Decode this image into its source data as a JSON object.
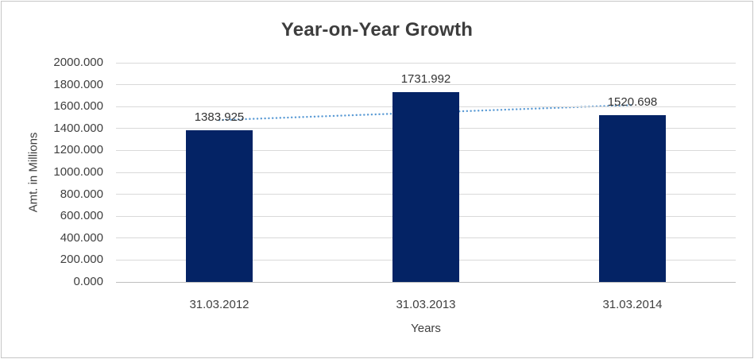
{
  "window": {
    "background": "#ffffff",
    "border_color": "#c6c6c6"
  },
  "chart_data": {
    "type": "bar",
    "title": "Year-on-Year Growth",
    "xlabel": "Years",
    "ylabel": "Amt. in Millions",
    "categories": [
      "31.03.2012",
      "31.03.2013",
      "31.03.2014"
    ],
    "values": [
      1383.925,
      1731.992,
      1520.698
    ],
    "data_labels": [
      "1383.925",
      "1731.992",
      "1520.698"
    ],
    "ylim": [
      0,
      2000
    ],
    "ytick_step": 200,
    "ytick_labels": [
      "0.000",
      "200.000",
      "400.000",
      "600.000",
      "800.000",
      "1000.000",
      "1200.000",
      "1400.000",
      "1600.000",
      "1800.000",
      "2000.000"
    ],
    "grid": true,
    "legend": "none",
    "bar_color": "#042365",
    "gridline_color": "#d9d9d9",
    "axis_line_color": "#bfbfbf",
    "text_color": "#3f3f3f",
    "title_color": "#3d3d3d",
    "trendline": {
      "type": "linear",
      "style": "dotted",
      "color": "#5B9BD5"
    }
  }
}
